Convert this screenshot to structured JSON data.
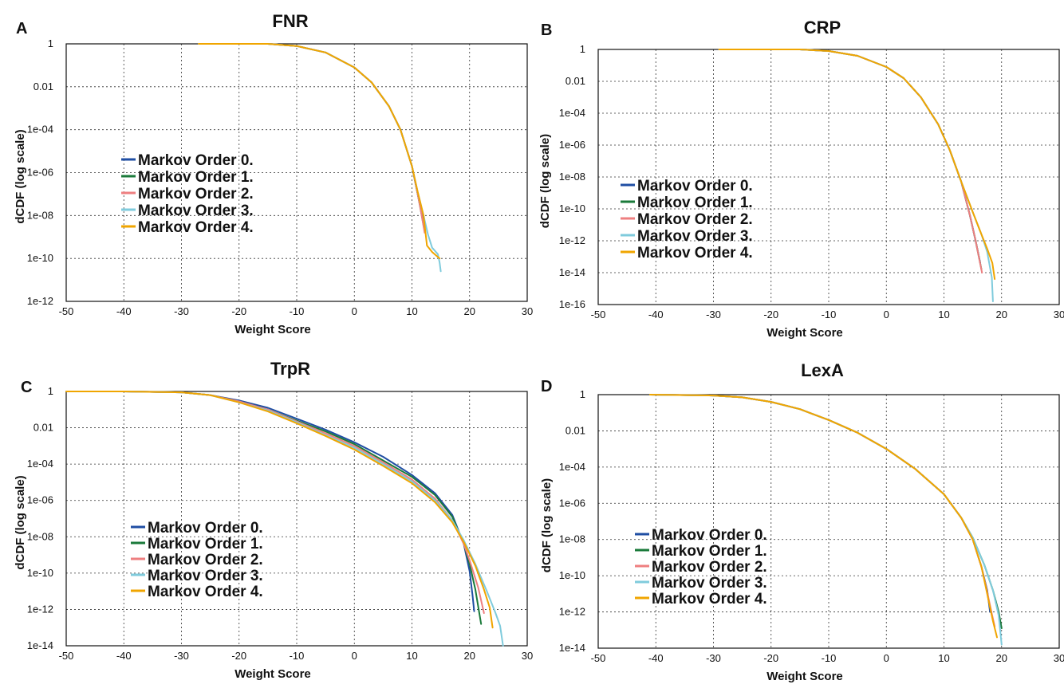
{
  "chart_data": [
    {
      "panel": "A",
      "title": "FNR",
      "type": "line",
      "xlabel": "Weight Score",
      "ylabel": "dCDF (log scale)",
      "xlim": [
        -50,
        30
      ],
      "ylim_log10": [
        -12,
        0
      ],
      "x_ticks": [
        "-50",
        "-40",
        "-30",
        "-20",
        "-10",
        "0",
        "10",
        "20",
        "30"
      ],
      "y_ticks": [
        "1",
        "0.01",
        "1e-04",
        "1e-06",
        "1e-08",
        "1e-10",
        "1e-12"
      ],
      "y_scale": "log",
      "grid": true,
      "legend_position": "middle-left",
      "series": [
        {
          "name": "Markov Order 0.",
          "color": "#1f4ea3",
          "x": [
            -27,
            -20,
            -15,
            -10,
            -5,
            0,
            3,
            6,
            8,
            10,
            11,
            11.5,
            12
          ],
          "log10_y": [
            0,
            0,
            0,
            -0.1,
            -0.4,
            -1.1,
            -1.8,
            -2.9,
            -4,
            -5.7,
            -7,
            -7.6,
            -8.3
          ]
        },
        {
          "name": "Markov Order 1.",
          "color": "#1a7a3a",
          "x": [
            -27,
            -20,
            -15,
            -10,
            -5,
            0,
            3,
            6,
            8,
            10,
            11,
            11.5,
            12.1
          ],
          "log10_y": [
            0,
            0,
            0,
            -0.1,
            -0.4,
            -1.1,
            -1.8,
            -2.9,
            -4,
            -5.7,
            -7,
            -7.7,
            -8.6
          ]
        },
        {
          "name": "Markov Order 2.",
          "color": "#ee7f80",
          "x": [
            -27,
            -20,
            -15,
            -10,
            -5,
            0,
            3,
            6,
            8,
            10,
            11,
            11.5,
            12.2
          ],
          "log10_y": [
            0,
            0,
            0,
            -0.1,
            -0.4,
            -1.1,
            -1.8,
            -2.9,
            -4,
            -5.7,
            -7,
            -7.7,
            -8.8
          ]
        },
        {
          "name": "Markov Order 3.",
          "color": "#7fcbdc",
          "x": [
            -27,
            -20,
            -15,
            -10,
            -5,
            0,
            3,
            6,
            8,
            10,
            11,
            12,
            12.8,
            13.5,
            14.5,
            14.8,
            15
          ],
          "log10_y": [
            0,
            0,
            0,
            -0.1,
            -0.4,
            -1.1,
            -1.8,
            -2.9,
            -4,
            -5.7,
            -6.9,
            -8,
            -8.9,
            -9.5,
            -9.8,
            -10.2,
            -10.6
          ]
        },
        {
          "name": "Markov Order 4.",
          "color": "#f0a500",
          "x": [
            -27,
            -20,
            -15,
            -10,
            -5,
            0,
            3,
            6,
            8,
            10,
            11,
            12,
            12.6,
            13.5,
            14.8
          ],
          "log10_y": [
            0,
            0,
            0,
            -0.1,
            -0.4,
            -1.1,
            -1.8,
            -2.9,
            -4,
            -5.7,
            -6.9,
            -8,
            -9.4,
            -9.7,
            -10
          ]
        }
      ]
    },
    {
      "panel": "B",
      "title": "CRP",
      "type": "line",
      "xlabel": "Weight Score",
      "ylabel": "dCDF (log scale)",
      "xlim": [
        -50,
        30
      ],
      "ylim_log10": [
        -16,
        0
      ],
      "x_ticks": [
        "-50",
        "-40",
        "-30",
        "-20",
        "-10",
        "0",
        "10",
        "20",
        "30"
      ],
      "y_ticks": [
        "1",
        "0.01",
        "1e-04",
        "1e-06",
        "1e-08",
        "1e-10",
        "1e-12",
        "1e-14",
        "1e-16"
      ],
      "y_scale": "log",
      "grid": true,
      "legend_position": "middle-right",
      "series": [
        {
          "name": "Markov Order 0.",
          "color": "#1f4ea3",
          "x": [
            -29,
            -20,
            -15,
            -10,
            -5,
            0,
            3,
            6,
            9,
            11,
            13,
            14.5,
            15.5,
            16.3
          ],
          "log10_y": [
            0,
            0,
            0,
            -0.1,
            -0.4,
            -1.1,
            -1.8,
            -3,
            -4.7,
            -6.3,
            -8.3,
            -10.4,
            -12,
            -13.4
          ]
        },
        {
          "name": "Markov Order 1.",
          "color": "#1a7a3a",
          "x": [
            -29,
            -20,
            -15,
            -10,
            -5,
            0,
            3,
            6,
            9,
            11,
            13,
            14.5,
            15.5,
            16.5
          ],
          "log10_y": [
            0,
            0,
            0,
            -0.1,
            -0.4,
            -1.1,
            -1.8,
            -3,
            -4.7,
            -6.3,
            -8.3,
            -10.4,
            -12,
            -13.8
          ]
        },
        {
          "name": "Markov Order 2.",
          "color": "#ee7f80",
          "x": [
            -29,
            -20,
            -15,
            -10,
            -5,
            0,
            3,
            6,
            9,
            11,
            13,
            14.5,
            15.5,
            16.6
          ],
          "log10_y": [
            0,
            0,
            0,
            -0.1,
            -0.4,
            -1.1,
            -1.8,
            -3,
            -4.7,
            -6.3,
            -8.3,
            -10.4,
            -12,
            -14
          ]
        },
        {
          "name": "Markov Order 3.",
          "color": "#7fcbdc",
          "x": [
            -29,
            -20,
            -15,
            -10,
            -5,
            0,
            3,
            6,
            9,
            11,
            13,
            15,
            16.5,
            17.5,
            18.3,
            18.5
          ],
          "log10_y": [
            0,
            0,
            0,
            -0.1,
            -0.4,
            -1.1,
            -1.8,
            -3,
            -4.7,
            -6.3,
            -8.3,
            -10.2,
            -11.6,
            -12.7,
            -14.3,
            -15.8
          ]
        },
        {
          "name": "Markov Order 4.",
          "color": "#f0a500",
          "x": [
            -29,
            -20,
            -15,
            -10,
            -5,
            0,
            3,
            6,
            9,
            11,
            13,
            15,
            16.5,
            17.5,
            18.4,
            18.8
          ],
          "log10_y": [
            0,
            0,
            0,
            -0.1,
            -0.4,
            -1.1,
            -1.8,
            -3,
            -4.7,
            -6.3,
            -8.3,
            -10.2,
            -11.6,
            -12.5,
            -13.4,
            -14.4
          ]
        }
      ]
    },
    {
      "panel": "C",
      "title": "TrpR",
      "type": "line",
      "xlabel": "Weight Score",
      "ylabel": "dCDF (log scale)",
      "xlim": [
        -50,
        30
      ],
      "ylim_log10": [
        -14,
        0
      ],
      "x_ticks": [
        "-50",
        "-40",
        "-30",
        "-20",
        "-10",
        "0",
        "10",
        "20",
        "30"
      ],
      "y_ticks": [
        "1",
        "0.01",
        "1e-04",
        "1e-06",
        "1e-08",
        "1e-10",
        "1e-12",
        "1e-14"
      ],
      "y_scale": "log",
      "grid": true,
      "legend_position": "lower-left",
      "series": [
        {
          "name": "Markov Order 0.",
          "color": "#1f4ea3",
          "x": [
            -50,
            -40,
            -30,
            -25,
            -20,
            -15,
            -10,
            -5,
            0,
            5,
            10,
            14,
            17,
            19,
            20,
            20.5,
            20.8
          ],
          "log10_y": [
            0,
            0,
            -0.05,
            -0.2,
            -0.5,
            -0.9,
            -1.5,
            -2.1,
            -2.8,
            -3.6,
            -4.6,
            -5.6,
            -6.8,
            -8.4,
            -9.9,
            -11.2,
            -12.1
          ]
        },
        {
          "name": "Markov Order 1.",
          "color": "#1a7a3a",
          "x": [
            -50,
            -40,
            -30,
            -25,
            -20,
            -15,
            -10,
            -5,
            0,
            5,
            10,
            14,
            17,
            19,
            20,
            21,
            22
          ],
          "log10_y": [
            0,
            0,
            -0.05,
            -0.2,
            -0.55,
            -1,
            -1.6,
            -2.2,
            -2.9,
            -3.8,
            -4.7,
            -5.7,
            -6.9,
            -8.4,
            -9.5,
            -10.9,
            -12.8
          ]
        },
        {
          "name": "Markov Order 2.",
          "color": "#ee7f80",
          "x": [
            -50,
            -40,
            -30,
            -25,
            -20,
            -15,
            -10,
            -5,
            0,
            5,
            10,
            14,
            17,
            19,
            20,
            21.5,
            22.5
          ],
          "log10_y": [
            0,
            0,
            -0.05,
            -0.2,
            -0.55,
            -1,
            -1.65,
            -2.3,
            -3,
            -3.9,
            -4.85,
            -5.9,
            -7.1,
            -8.4,
            -9.3,
            -10.8,
            -12.2
          ]
        },
        {
          "name": "Markov Order 3.",
          "color": "#7fcbdc",
          "x": [
            -50,
            -40,
            -30,
            -25,
            -20,
            -15,
            -10,
            -5,
            0,
            5,
            10,
            14,
            17,
            19,
            21,
            23,
            24.5,
            25.3,
            25.8
          ],
          "log10_y": [
            0,
            0,
            -0.05,
            -0.2,
            -0.6,
            -1.05,
            -1.7,
            -2.4,
            -3.1,
            -4,
            -4.95,
            -6,
            -7.1,
            -8.2,
            -9.5,
            -11,
            -12.2,
            -12.9,
            -14
          ]
        },
        {
          "name": "Markov Order 4.",
          "color": "#f0a500",
          "x": [
            -50,
            -40,
            -30,
            -25,
            -20,
            -15,
            -10,
            -5,
            0,
            5,
            10,
            14,
            17,
            19,
            21,
            22.5,
            23.5,
            24
          ],
          "log10_y": [
            0,
            0,
            -0.05,
            -0.2,
            -0.6,
            -1.1,
            -1.75,
            -2.45,
            -3.2,
            -4.1,
            -5.05,
            -6.1,
            -7.2,
            -8.3,
            -9.6,
            -10.9,
            -11.9,
            -13
          ]
        }
      ]
    },
    {
      "panel": "D",
      "title": "LexA",
      "type": "line",
      "xlabel": "Weight Score",
      "ylabel": "dCDF (log scale)",
      "xlim": [
        -50,
        30
      ],
      "ylim_log10": [
        -14,
        0
      ],
      "x_ticks": [
        "-50",
        "-40",
        "-30",
        "-20",
        "-10",
        "0",
        "10",
        "20",
        "30"
      ],
      "y_ticks": [
        "1",
        "0.01",
        "1e-04",
        "1e-06",
        "1e-08",
        "1e-10",
        "1e-12",
        "1e-14"
      ],
      "y_scale": "log",
      "grid": true,
      "legend_position": "lower-left",
      "series": [
        {
          "name": "Markov Order 0.",
          "color": "#1f4ea3",
          "x": [
            -41,
            -30,
            -25,
            -20,
            -15,
            -10,
            -5,
            0,
            5,
            10,
            13,
            15,
            16.5,
            17.5,
            18
          ],
          "log10_y": [
            0,
            -0.05,
            -0.15,
            -0.4,
            -0.8,
            -1.4,
            -2.1,
            -3,
            -4.1,
            -5.5,
            -6.8,
            -8,
            -9.5,
            -10.8,
            -12
          ]
        },
        {
          "name": "Markov Order 1.",
          "color": "#1a7a3a",
          "x": [
            -41,
            -30,
            -25,
            -20,
            -15,
            -10,
            -5,
            0,
            5,
            10,
            13,
            15,
            17,
            18.5,
            19.5,
            20
          ],
          "log10_y": [
            0,
            -0.05,
            -0.15,
            -0.4,
            -0.8,
            -1.4,
            -2.1,
            -3,
            -4.1,
            -5.5,
            -6.8,
            -7.9,
            -9.4,
            -10.8,
            -12,
            -12.9
          ]
        },
        {
          "name": "Markov Order 2.",
          "color": "#ee7f80",
          "x": [
            -41,
            -30,
            -25,
            -20,
            -15,
            -10,
            -5,
            0,
            5,
            10,
            13,
            15,
            16.5,
            17.5,
            18.3,
            18.8
          ],
          "log10_y": [
            0,
            -0.05,
            -0.15,
            -0.4,
            -0.8,
            -1.4,
            -2.1,
            -3,
            -4.1,
            -5.5,
            -6.8,
            -8,
            -9.5,
            -10.9,
            -12.1,
            -12.8
          ]
        },
        {
          "name": "Markov Order 3.",
          "color": "#7fcbdc",
          "x": [
            -41,
            -30,
            -25,
            -20,
            -15,
            -10,
            -5,
            0,
            5,
            10,
            13,
            15,
            17,
            18.5,
            19.5,
            20
          ],
          "log10_y": [
            0,
            -0.05,
            -0.15,
            -0.4,
            -0.8,
            -1.4,
            -2.1,
            -3,
            -4.1,
            -5.5,
            -6.8,
            -7.9,
            -9.4,
            -10.8,
            -12.2,
            -13.8
          ]
        },
        {
          "name": "Markov Order 4.",
          "color": "#f0a500",
          "x": [
            -41,
            -30,
            -25,
            -20,
            -15,
            -10,
            -5,
            0,
            5,
            10,
            13,
            15,
            16.5,
            17.5,
            18.5,
            19.2
          ],
          "log10_y": [
            0,
            -0.05,
            -0.15,
            -0.4,
            -0.8,
            -1.4,
            -2.1,
            -3,
            -4.1,
            -5.5,
            -6.8,
            -8,
            -9.5,
            -11,
            -12.5,
            -13.4
          ]
        }
      ]
    }
  ]
}
